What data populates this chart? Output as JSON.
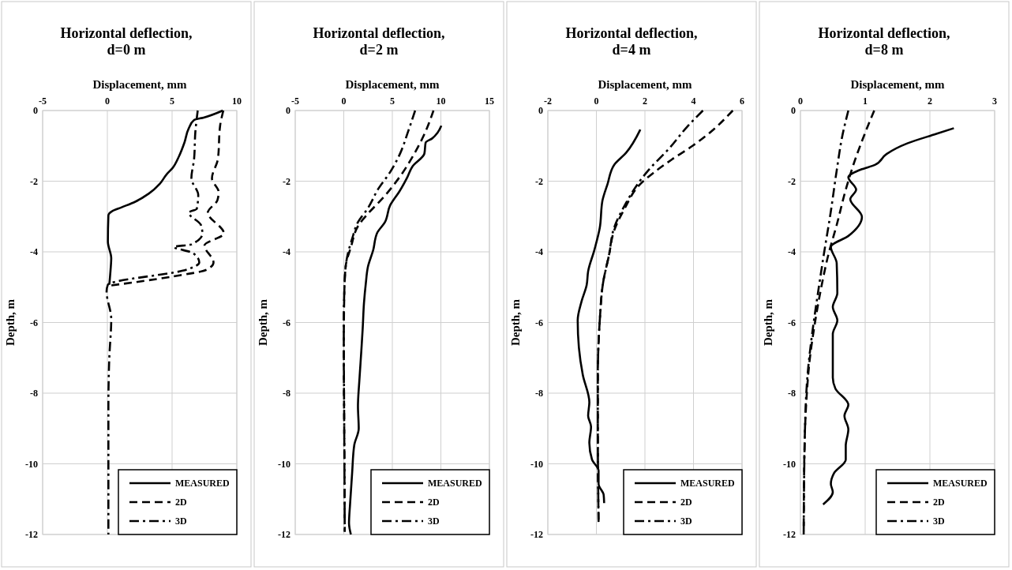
{
  "chart_data": [
    {
      "type": "line",
      "title": "Horizontal deflection, d=0 m",
      "xlabel": "Displacement, mm",
      "ylabel": "Depth, m",
      "xlim": [
        -5,
        10
      ],
      "xticks": [
        -5,
        0,
        5,
        10
      ],
      "ylim": [
        -12,
        0
      ],
      "yticks": [
        -12,
        -10,
        -8,
        -6,
        -4,
        -2,
        0
      ],
      "grid": true,
      "legend": "bottom right",
      "series": [
        {
          "name": "MEASURED",
          "color": "#000000",
          "line_style": "solid",
          "x": [
            8.92,
            7.44,
            6.7,
            6.28,
            5.96,
            5.54,
            5.01,
            4.59,
            4.06,
            3.21,
            2.16,
            1.1,
            0.36,
            0.08,
            0.04,
            0.3,
            0.25,
            0.15
          ],
          "values": [
            0,
            -0.2,
            -0.27,
            -0.51,
            -0.9,
            -1.29,
            -1.64,
            -1.8,
            -2.07,
            -2.35,
            -2.58,
            -2.74,
            -2.85,
            -2.97,
            -3.71,
            -4.18,
            -4.5,
            -4.93
          ]
        },
        {
          "name": "2D",
          "color": "#000000",
          "line_style": "dashed",
          "x": [
            8.96,
            8.71,
            8.54,
            8.08,
            8.6,
            8.5,
            7.76,
            9.0,
            7.5,
            8.2,
            7.7,
            5.0,
            0.1
          ],
          "values": [
            0,
            -0.43,
            -1.37,
            -1.92,
            -2.31,
            -2.54,
            -2.89,
            -3.48,
            -3.82,
            -4.3,
            -4.5,
            -4.7,
            -4.96
          ]
        },
        {
          "name": "3D",
          "color": "#000000",
          "line_style": "dashdot",
          "x": [
            6.98,
            6.8,
            6.7,
            6.49,
            7.02,
            6.91,
            6.28,
            7.23,
            7.34,
            6.49,
            5.12,
            6.6,
            7.1,
            6.17,
            0.04,
            -0.06,
            0.3,
            0.15,
            0.08,
            0.08
          ],
          "values": [
            0,
            -0.59,
            -1.37,
            -1.92,
            -2.39,
            -2.78,
            -2.89,
            -3.24,
            -3.48,
            -3.79,
            -3.86,
            -4.03,
            -4.3,
            -4.5,
            -4.93,
            -5.12,
            -5.9,
            -7.0,
            -8.4,
            -12
          ]
        }
      ]
    },
    {
      "type": "line",
      "title": "Horizontal deflection, d=2 m",
      "xlabel": "Displacement, mm",
      "ylabel": "Depth, m",
      "xlim": [
        -5,
        15
      ],
      "xticks": [
        -5,
        0,
        5,
        10,
        15
      ],
      "ylim": [
        -12,
        0
      ],
      "yticks": [
        -12,
        -10,
        -8,
        -6,
        -4,
        -2,
        0
      ],
      "grid": true,
      "legend": "bottom right",
      "series": [
        {
          "name": "MEASURED",
          "color": "#000000",
          "line_style": "solid",
          "x": [
            10.05,
            9.65,
            9.1,
            8.43,
            8.3,
            7.08,
            6.54,
            5.73,
            4.78,
            4.24,
            3.43,
            3.03,
            2.49,
            2.27,
            2.08,
            1.95,
            1.81,
            1.62,
            1.46,
            1.54,
            1.08,
            0.86,
            0.65,
            0.54,
            0.73
          ],
          "values": [
            -0.43,
            -0.63,
            -0.79,
            -0.91,
            -1.22,
            -1.58,
            -1.89,
            -2.29,
            -2.68,
            -3.16,
            -3.47,
            -3.95,
            -4.42,
            -4.89,
            -5.45,
            -6.16,
            -6.79,
            -7.58,
            -8.37,
            -9.0,
            -9.47,
            -10.26,
            -11.13,
            -11.68,
            -12
          ]
        },
        {
          "name": "2D",
          "color": "#000000",
          "line_style": "dashed",
          "x": [
            9.24,
            8.43,
            7.35,
            5.73,
            4.11,
            2.49,
            1.54,
            0.73,
            0.19,
            0.05,
            0,
            0.05,
            0.1
          ],
          "values": [
            0,
            -0.59,
            -1.18,
            -1.89,
            -2.45,
            -2.92,
            -3.24,
            -3.87,
            -4.42,
            -5.21,
            -6.79,
            -9.16,
            -11.92
          ]
        },
        {
          "name": "3D",
          "color": "#000000",
          "line_style": "dashdot",
          "x": [
            7.35,
            6.68,
            5.73,
            4.78,
            3.57,
            2.49,
            1.46,
            0.86,
            0.38,
            0.11,
            0,
            0.05,
            0.1
          ],
          "values": [
            0,
            -0.55,
            -1.26,
            -1.74,
            -2.21,
            -2.76,
            -3.16,
            -3.63,
            -4.1,
            -4.74,
            -6.0,
            -9.16,
            -11.92
          ]
        }
      ]
    },
    {
      "type": "line",
      "title": "Horizontal deflection, d=4 m",
      "xlabel": "Displacement, mm",
      "ylabel": "Depth, m",
      "xlim": [
        -2,
        6
      ],
      "xticks": [
        -2,
        0,
        2,
        4,
        6
      ],
      "ylim": [
        -12,
        0
      ],
      "yticks": [
        -12,
        -10,
        -8,
        -6,
        -4,
        -2,
        0
      ],
      "grid": true,
      "legend": "bottom right",
      "series": [
        {
          "name": "MEASURED",
          "color": "#000000",
          "line_style": "solid",
          "x": [
            1.81,
            1.22,
            0.73,
            0.46,
            0.25,
            0.14,
            -0.08,
            -0.34,
            -0.4,
            -0.61,
            -0.77,
            -0.72,
            -0.56,
            -0.29,
            -0.34,
            -0.22,
            -0.29,
            -0.18,
            0.09,
            0.09,
            0.3,
            0.32
          ],
          "values": [
            -0.54,
            -1.2,
            -1.54,
            -2.08,
            -2.55,
            -3.32,
            -3.94,
            -4.55,
            -4.94,
            -5.4,
            -5.94,
            -6.71,
            -7.48,
            -8.26,
            -8.64,
            -8.95,
            -9.41,
            -9.88,
            -10.19,
            -10.57,
            -10.88,
            -11.11
          ]
        },
        {
          "name": "2D",
          "color": "#000000",
          "line_style": "dashed",
          "x": [
            5.62,
            4.82,
            3.96,
            3.1,
            2.34,
            1.81,
            1.16,
            0.73,
            0.52,
            0.28,
            0.14,
            0.06,
            0.06,
            0.09
          ],
          "values": [
            0,
            -0.54,
            -1.0,
            -1.39,
            -1.77,
            -2.08,
            -2.78,
            -3.4,
            -4.09,
            -4.86,
            -5.94,
            -7.48,
            -9.03,
            -11.65
          ]
        },
        {
          "name": "3D",
          "color": "#000000",
          "line_style": "dashdot",
          "x": [
            4.39,
            3.74,
            2.99,
            2.13,
            1.7,
            1.22,
            0.73,
            0.52,
            0.28,
            0.14,
            0.06,
            0.06,
            0.09
          ],
          "values": [
            0,
            -0.46,
            -1.08,
            -1.7,
            -2.08,
            -2.62,
            -3.32,
            -4.09,
            -4.86,
            -5.94,
            -7.48,
            -9.03,
            -11.65
          ]
        }
      ]
    },
    {
      "type": "line",
      "title": "Horizontal deflection, d=8 m",
      "xlabel": "Displacement, mm",
      "ylabel": "Depth, m",
      "xlim": [
        0,
        3
      ],
      "xticks": [
        0,
        1,
        2,
        3
      ],
      "ylim": [
        -12,
        0
      ],
      "yticks": [
        -12,
        -10,
        -8,
        -6,
        -4,
        -2,
        0
      ],
      "grid": true,
      "legend": "bottom right",
      "series": [
        {
          "name": "MEASURED",
          "color": "#000000",
          "line_style": "solid",
          "x": [
            2.37,
            2.1,
            1.65,
            1.33,
            1.15,
            0.95,
            0.74,
            0.86,
            0.77,
            0.95,
            0.74,
            0.47,
            0.56,
            0.57,
            0.5,
            0.57,
            0.5,
            0.5,
            0.54,
            0.74,
            0.68,
            0.74,
            0.7,
            0.7,
            0.52,
            0.47,
            0.5,
            0.35
          ],
          "values": [
            -0.5,
            -0.66,
            -0.93,
            -1.23,
            -1.54,
            -1.66,
            -1.89,
            -2.24,
            -2.51,
            -3.01,
            -3.55,
            -3.86,
            -4.32,
            -5.17,
            -5.56,
            -5.94,
            -6.33,
            -7.56,
            -7.87,
            -8.33,
            -8.64,
            -9.03,
            -9.49,
            -9.88,
            -10.26,
            -10.57,
            -10.8,
            -11.15
          ]
        },
        {
          "name": "2D",
          "color": "#000000",
          "line_style": "dashed",
          "x": [
            1.14,
            0.97,
            0.83,
            0.7,
            0.56,
            0.43,
            0.32,
            0.23,
            0.14,
            0.09,
            0.06,
            0.05
          ],
          "values": [
            0,
            -0.77,
            -1.47,
            -2.24,
            -3.24,
            -4.09,
            -5.02,
            -5.94,
            -7.1,
            -8.26,
            -9.8,
            -12
          ]
        },
        {
          "name": "3D",
          "color": "#000000",
          "line_style": "dashdot",
          "x": [
            0.74,
            0.65,
            0.56,
            0.47,
            0.36,
            0.27,
            0.18,
            0.11,
            0.07,
            0.05
          ],
          "values": [
            0,
            -0.69,
            -1.7,
            -2.85,
            -4.09,
            -5.17,
            -6.33,
            -7.48,
            -9.03,
            -12
          ]
        }
      ]
    }
  ]
}
